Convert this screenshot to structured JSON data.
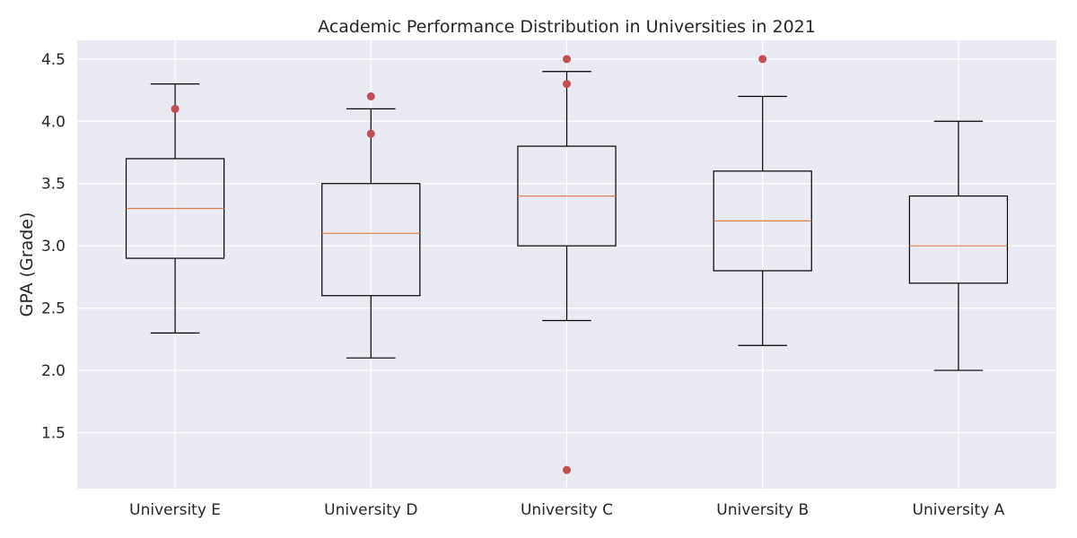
{
  "chart_data": {
    "type": "boxplot",
    "title": "Academic Performance Distribution in Universities in 2021",
    "xlabel": "",
    "ylabel": "GPA (Grade)",
    "ylim": [
      1.05,
      4.65
    ],
    "yticks": [
      "1.5",
      "2.0",
      "2.5",
      "3.0",
      "3.5",
      "4.0",
      "4.5"
    ],
    "grid": true,
    "colors": {
      "background": "#eaeaf2",
      "grid": "#ffffff",
      "box": "#000000",
      "median": "#dd8452",
      "outlier": "#c44e52"
    },
    "categories": [
      "University E",
      "University D",
      "University C",
      "University B",
      "University A"
    ],
    "boxes": [
      {
        "min": 2.3,
        "q1": 2.9,
        "median": 3.3,
        "q3": 3.7,
        "max": 4.3,
        "outliers": [
          4.1
        ]
      },
      {
        "min": 2.1,
        "q1": 2.6,
        "median": 3.1,
        "q3": 3.5,
        "max": 4.1,
        "outliers": [
          4.2,
          3.9
        ]
      },
      {
        "min": 2.4,
        "q1": 3.0,
        "median": 3.4,
        "q3": 3.8,
        "max": 4.4,
        "outliers": [
          4.5,
          4.3,
          1.2
        ]
      },
      {
        "min": 2.2,
        "q1": 2.8,
        "median": 3.2,
        "q3": 3.6,
        "max": 4.2,
        "outliers": [
          4.5
        ]
      },
      {
        "min": 2.0,
        "q1": 2.7,
        "median": 3.0,
        "q3": 3.4,
        "max": 4.0,
        "outliers": []
      }
    ]
  }
}
